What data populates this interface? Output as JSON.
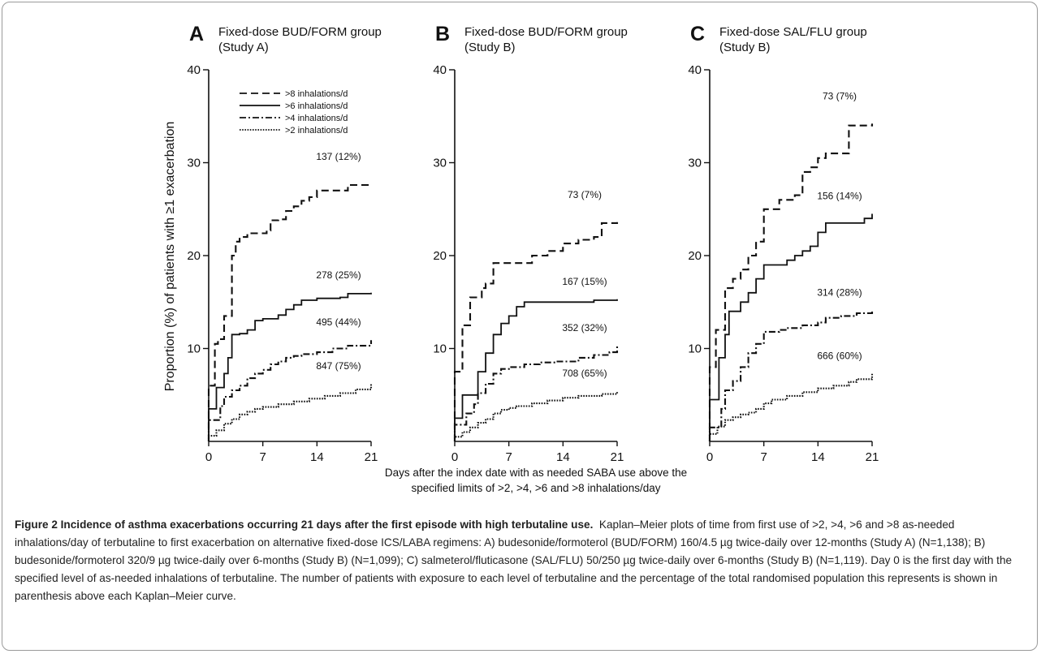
{
  "figure": {
    "x_axis_label_line1": "Days after the index date with as needed SABA use above the",
    "x_axis_label_line2": "specified limits of >2, >4, >6 and >8 inhalations/day",
    "y_axis_label": "Proportion (%) of patients with ≥1 exacerbation",
    "caption_title": "Figure 2 Incidence of asthma exacerbations occurring 21 days after the first episode with high terbutaline use.",
    "caption_body": "Kaplan–Meier plots of time from first use of >2, >4, >6 and >8 as-needed inhalations/day of terbutaline to first exacerbation on alternative fixed-dose ICS/LABA regimens: A) budesonide/formoterol (BUD/FORM) 160/4.5 µg twice-daily over 12-months (Study A) (N=1,138); B) budesonide/formoterol 320/9 µg twice-daily over 6-months (Study B) (N=1,099); C) salmeterol/fluticasone (SAL/FLU) 50/250 µg twice-daily over 6-months (Study B) (N=1,119). Day 0 is the first day with the specified level of as-needed inhalations of terbutaline. The number of patients with exposure to each level of terbutaline and the percentage of the total randomised population this represents is shown in parenthesis above each Kaplan–Meier curve."
  },
  "legend": [
    {
      "label": ">8 inhalations/d",
      "dash": "dashed"
    },
    {
      "label": ">6 inhalations/d",
      "dash": "solid"
    },
    {
      "label": ">4 inhalations/d",
      "dash": "dashdot"
    },
    {
      "label": ">2 inhalations/d",
      "dash": "dotted"
    }
  ],
  "chart_data": [
    {
      "type": "line",
      "panel": "A",
      "title_line1": "Fixed-dose BUD/FORM group",
      "title_line2": "(Study A)",
      "xlim": [
        0,
        21
      ],
      "ylim": [
        0,
        40
      ],
      "x_ticks": [
        0,
        7,
        14,
        21
      ],
      "y_ticks": [
        10,
        20,
        30,
        40
      ],
      "series": [
        {
          "name": ">8 inhalations/d",
          "dash": "dashed",
          "end_label": "137 (12%)",
          "points": [
            [
              0,
              0
            ],
            [
              0,
              6
            ],
            [
              0.5,
              6
            ],
            [
              0.8,
              10.5
            ],
            [
              1.2,
              11
            ],
            [
              1.6,
              11
            ],
            [
              2,
              13.5
            ],
            [
              2.5,
              13.5
            ],
            [
              3,
              20
            ],
            [
              3.5,
              21.5
            ],
            [
              4,
              22
            ],
            [
              5,
              22.4
            ],
            [
              7,
              22.4
            ],
            [
              7.5,
              22.7
            ],
            [
              8,
              23.8
            ],
            [
              9,
              23.9
            ],
            [
              10,
              24.8
            ],
            [
              11,
              25.3
            ],
            [
              12,
              25.9
            ],
            [
              13,
              26.3
            ],
            [
              14,
              27
            ],
            [
              17,
              27
            ],
            [
              18,
              27.6
            ],
            [
              21,
              27.7
            ]
          ]
        },
        {
          "name": ">6 inhalations/d",
          "dash": "solid",
          "end_label": "278 (25%)",
          "points": [
            [
              0,
              0
            ],
            [
              0,
              3.5
            ],
            [
              1,
              3.5
            ],
            [
              1,
              5.8
            ],
            [
              2,
              5.8
            ],
            [
              2,
              7.3
            ],
            [
              2.5,
              9
            ],
            [
              3,
              11.5
            ],
            [
              4,
              11.6
            ],
            [
              5,
              12
            ],
            [
              6,
              13
            ],
            [
              7,
              13.2
            ],
            [
              9,
              13.6
            ],
            [
              10,
              14.2
            ],
            [
              11,
              14.7
            ],
            [
              12,
              15.2
            ],
            [
              14,
              15.4
            ],
            [
              17,
              15.5
            ],
            [
              18,
              15.9
            ],
            [
              21,
              16
            ]
          ]
        },
        {
          "name": ">4 inhalations/d",
          "dash": "dashdot",
          "end_label": "495 (44%)",
          "points": [
            [
              0,
              0
            ],
            [
              0,
              2.3
            ],
            [
              1,
              2.3
            ],
            [
              1.5,
              3.8
            ],
            [
              2,
              4.8
            ],
            [
              3,
              5.5
            ],
            [
              4,
              6
            ],
            [
              5,
              6.8
            ],
            [
              6,
              7.3
            ],
            [
              7,
              7.7
            ],
            [
              8,
              8.3
            ],
            [
              9,
              8.6
            ],
            [
              10,
              9
            ],
            [
              11,
              9.2
            ],
            [
              12,
              9.4
            ],
            [
              14,
              9.6
            ],
            [
              16,
              10
            ],
            [
              18,
              10.3
            ],
            [
              21,
              10.9
            ]
          ]
        },
        {
          "name": ">2 inhalations/d",
          "dash": "dotted",
          "end_label": "847 (75%)",
          "points": [
            [
              0,
              0
            ],
            [
              0,
              0.6
            ],
            [
              1,
              1.2
            ],
            [
              2,
              1.9
            ],
            [
              3,
              2.4
            ],
            [
              4,
              2.9
            ],
            [
              5,
              3.2
            ],
            [
              6,
              3.5
            ],
            [
              7,
              3.7
            ],
            [
              9,
              4
            ],
            [
              11,
              4.3
            ],
            [
              13,
              4.6
            ],
            [
              15,
              4.9
            ],
            [
              17,
              5.2
            ],
            [
              19,
              5.6
            ],
            [
              21,
              6.2
            ]
          ]
        }
      ]
    },
    {
      "type": "line",
      "panel": "B",
      "title_line1": "Fixed-dose BUD/FORM group",
      "title_line2": "(Study B)",
      "xlim": [
        0,
        21
      ],
      "ylim": [
        0,
        40
      ],
      "x_ticks": [
        0,
        7,
        14,
        21
      ],
      "y_ticks": [
        10,
        20,
        30,
        40
      ],
      "series": [
        {
          "name": ">8 inhalations/d",
          "dash": "dashed",
          "end_label": "73 (7%)",
          "points": [
            [
              0,
              0
            ],
            [
              0,
              7.5
            ],
            [
              0.7,
              7.5
            ],
            [
              1,
              12.5
            ],
            [
              2,
              12.5
            ],
            [
              2,
              15.5
            ],
            [
              3,
              15.5
            ],
            [
              3.5,
              16.5
            ],
            [
              4,
              17
            ],
            [
              5,
              19.2
            ],
            [
              9,
              19.2
            ],
            [
              10,
              20
            ],
            [
              12,
              20.5
            ],
            [
              14,
              21.3
            ],
            [
              16,
              21.7
            ],
            [
              18,
              22
            ],
            [
              19,
              23.5
            ],
            [
              21,
              23.6
            ]
          ]
        },
        {
          "name": ">6 inhalations/d",
          "dash": "solid",
          "end_label": "167 (15%)",
          "points": [
            [
              0,
              0
            ],
            [
              0,
              2.5
            ],
            [
              1,
              2.5
            ],
            [
              1,
              5
            ],
            [
              2.5,
              5
            ],
            [
              3,
              7.5
            ],
            [
              4,
              9.5
            ],
            [
              5,
              11.5
            ],
            [
              6,
              12.7
            ],
            [
              7,
              13.5
            ],
            [
              8,
              14.5
            ],
            [
              9,
              15
            ],
            [
              17,
              15
            ],
            [
              18,
              15.2
            ],
            [
              21,
              15.3
            ]
          ]
        },
        {
          "name": ">4 inhalations/d",
          "dash": "dashdot",
          "end_label": "352 (32%)",
          "points": [
            [
              0,
              0
            ],
            [
              0,
              1.8
            ],
            [
              1,
              1.8
            ],
            [
              1.5,
              3
            ],
            [
              2.5,
              4
            ],
            [
              3,
              5.2
            ],
            [
              4,
              6.2
            ],
            [
              5,
              7.3
            ],
            [
              6,
              7.8
            ],
            [
              7,
              8
            ],
            [
              9,
              8.3
            ],
            [
              11,
              8.5
            ],
            [
              13,
              8.6
            ],
            [
              16,
              9
            ],
            [
              18,
              9.3
            ],
            [
              20,
              9.6
            ],
            [
              21,
              10.3
            ]
          ]
        },
        {
          "name": ">2 inhalations/d",
          "dash": "dotted",
          "end_label": "708 (65%)",
          "points": [
            [
              0,
              0
            ],
            [
              0,
              0.5
            ],
            [
              1,
              1
            ],
            [
              2,
              1.5
            ],
            [
              3,
              2
            ],
            [
              4,
              2.4
            ],
            [
              5,
              3
            ],
            [
              6,
              3.4
            ],
            [
              7,
              3.6
            ],
            [
              8,
              3.8
            ],
            [
              10,
              4.1
            ],
            [
              12,
              4.4
            ],
            [
              14,
              4.7
            ],
            [
              16,
              4.9
            ],
            [
              19,
              5.1
            ],
            [
              21,
              5.4
            ]
          ]
        }
      ]
    },
    {
      "type": "line",
      "panel": "C",
      "title_line1": "Fixed-dose SAL/FLU group",
      "title_line2": "(Study B)",
      "xlim": [
        0,
        21
      ],
      "ylim": [
        0,
        40
      ],
      "x_ticks": [
        0,
        7,
        14,
        21
      ],
      "y_ticks": [
        10,
        20,
        30,
        40
      ],
      "series": [
        {
          "name": ">8 inhalations/d",
          "dash": "dashed",
          "end_label": "73 (7%)",
          "points": [
            [
              0,
              0
            ],
            [
              0,
              8
            ],
            [
              0.5,
              8
            ],
            [
              0.8,
              12
            ],
            [
              1.5,
              12
            ],
            [
              2,
              16.5
            ],
            [
              3,
              17.5
            ],
            [
              4,
              18.5
            ],
            [
              5,
              20
            ],
            [
              6,
              21.5
            ],
            [
              7,
              25
            ],
            [
              8,
              25
            ],
            [
              9,
              26
            ],
            [
              11,
              26.5
            ],
            [
              12,
              29
            ],
            [
              13,
              29.5
            ],
            [
              14,
              30.5
            ],
            [
              15,
              31
            ],
            [
              17,
              31
            ],
            [
              18,
              34
            ],
            [
              21,
              34.2
            ]
          ]
        },
        {
          "name": ">6 inhalations/d",
          "dash": "solid",
          "end_label": "156 (14%)",
          "points": [
            [
              0,
              0
            ],
            [
              0,
              4.5
            ],
            [
              1,
              4.5
            ],
            [
              1.2,
              9
            ],
            [
              2,
              11.5
            ],
            [
              2.5,
              14
            ],
            [
              3.5,
              14
            ],
            [
              4,
              15
            ],
            [
              5,
              16
            ],
            [
              6,
              17.5
            ],
            [
              7,
              19
            ],
            [
              10,
              19.5
            ],
            [
              11,
              20
            ],
            [
              12,
              20.5
            ],
            [
              13,
              21
            ],
            [
              14,
              22.5
            ],
            [
              15,
              23.5
            ],
            [
              19,
              23.5
            ],
            [
              20,
              24
            ],
            [
              21,
              24.5
            ]
          ]
        },
        {
          "name": ">4 inhalations/d",
          "dash": "dashdot",
          "end_label": "314 (28%)",
          "points": [
            [
              0,
              0
            ],
            [
              0,
              1.5
            ],
            [
              1,
              1.5
            ],
            [
              1.5,
              3.5
            ],
            [
              2,
              5.5
            ],
            [
              3,
              6.5
            ],
            [
              4,
              8
            ],
            [
              5,
              9.5
            ],
            [
              6,
              10.5
            ],
            [
              7,
              11.8
            ],
            [
              9,
              12
            ],
            [
              10,
              12.2
            ],
            [
              12,
              12.5
            ],
            [
              14,
              12.8
            ],
            [
              15,
              13.3
            ],
            [
              17,
              13.5
            ],
            [
              19,
              13.8
            ],
            [
              21,
              14.1
            ]
          ]
        },
        {
          "name": ">2 inhalations/d",
          "dash": "dotted",
          "end_label": "666 (60%)",
          "points": [
            [
              0,
              0
            ],
            [
              0,
              0.8
            ],
            [
              1,
              1.6
            ],
            [
              2,
              2.3
            ],
            [
              3,
              2.6
            ],
            [
              4,
              2.9
            ],
            [
              5,
              3.1
            ],
            [
              6,
              3.5
            ],
            [
              7,
              4.1
            ],
            [
              8,
              4.5
            ],
            [
              10,
              4.9
            ],
            [
              12,
              5.3
            ],
            [
              14,
              5.7
            ],
            [
              16,
              6
            ],
            [
              18,
              6.4
            ],
            [
              19,
              6.7
            ],
            [
              21,
              7.3
            ]
          ]
        }
      ]
    }
  ]
}
